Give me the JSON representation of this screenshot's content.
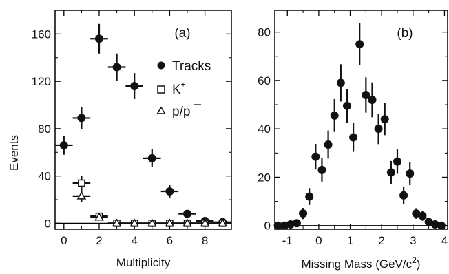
{
  "chart_data": [
    {
      "type": "scatter",
      "panel_label": "(a)",
      "xlabel": "Multiplicity",
      "ylabel": "Events",
      "xlim": [
        -0.5,
        9.5
      ],
      "ylim": [
        -5,
        180
      ],
      "xticks": [
        0,
        2,
        4,
        6,
        8
      ],
      "yticks": [
        0,
        40,
        80,
        120,
        160
      ],
      "baseline_y": 0,
      "series": [
        {
          "name": "Tracks",
          "marker": "filled-circle",
          "points": [
            {
              "x": 0,
              "y": 66,
              "yerr": 8
            },
            {
              "x": 1,
              "y": 89,
              "yerr": 9.5
            },
            {
              "x": 2,
              "y": 156,
              "yerr": 12.5
            },
            {
              "x": 3,
              "y": 132,
              "yerr": 11.5
            },
            {
              "x": 4,
              "y": 116,
              "yerr": 11
            },
            {
              "x": 5,
              "y": 55,
              "yerr": 7.5
            },
            {
              "x": 6,
              "y": 27,
              "yerr": 5.2
            },
            {
              "x": 7,
              "y": 8,
              "yerr": 2.8
            },
            {
              "x": 8,
              "y": 2,
              "yerr": 1.4
            },
            {
              "x": 9,
              "y": 1,
              "yerr": 1
            }
          ]
        },
        {
          "name": "K±",
          "marker": "open-square",
          "points": [
            {
              "x": 1,
              "y": 34,
              "yerr": 6
            },
            {
              "x": 2,
              "y": 6,
              "yerr": 2.5
            },
            {
              "x": 3,
              "y": 0,
              "yerr": 0.8
            },
            {
              "x": 4,
              "y": 0,
              "yerr": 0.8
            },
            {
              "x": 5,
              "y": 0,
              "yerr": 0.8
            },
            {
              "x": 6,
              "y": 0,
              "yerr": 0.8
            },
            {
              "x": 7,
              "y": 0,
              "yerr": 0.8
            },
            {
              "x": 8,
              "y": 0,
              "yerr": 0.8
            },
            {
              "x": 9,
              "y": 0,
              "yerr": 0.8
            }
          ]
        },
        {
          "name": "p/p̄",
          "marker": "open-triangle",
          "points": [
            {
              "x": 1,
              "y": 23,
              "yerr": 5
            },
            {
              "x": 2,
              "y": 5,
              "yerr": 2.2
            },
            {
              "x": 3,
              "y": 0,
              "yerr": 0.8
            },
            {
              "x": 4,
              "y": 0,
              "yerr": 0.8
            },
            {
              "x": 5,
              "y": 0,
              "yerr": 0.8
            },
            {
              "x": 6,
              "y": 0,
              "yerr": 0.8
            },
            {
              "x": 7,
              "y": 0,
              "yerr": 0.8
            },
            {
              "x": 8,
              "y": 0,
              "yerr": 0.8
            },
            {
              "x": 9,
              "y": 0,
              "yerr": 0.8
            }
          ]
        }
      ],
      "legend": [
        {
          "label": "Tracks",
          "sup": "",
          "marker": "filled-circle"
        },
        {
          "label": "K",
          "sup": "±",
          "marker": "open-square"
        },
        {
          "label": "p/p",
          "sup": "",
          "marker": "open-triangle"
        }
      ]
    },
    {
      "type": "scatter",
      "panel_label": "(b)",
      "xlabel": "Missing Mass  (GeV/c",
      "xlabel_sup": "2",
      "xlabel_end": ")",
      "ylabel": "",
      "xlim": [
        -1.4,
        4.1
      ],
      "ylim": [
        -1.5,
        89
      ],
      "xticks": [
        -1,
        0,
        1,
        2,
        3,
        4
      ],
      "yticks": [
        0,
        20,
        40,
        60,
        80
      ],
      "baseline_y": 0,
      "bin_width": 0.2,
      "series": [
        {
          "name": "",
          "marker": "filled-circle",
          "points": [
            {
              "x": -1.3,
              "y": 0,
              "yerr": 0.6
            },
            {
              "x": -1.1,
              "y": 0,
              "yerr": 0.6
            },
            {
              "x": -0.9,
              "y": 0.5,
              "yerr": 0.8
            },
            {
              "x": -0.7,
              "y": 1,
              "yerr": 1
            },
            {
              "x": -0.5,
              "y": 5,
              "yerr": 2.3
            },
            {
              "x": -0.3,
              "y": 12,
              "yerr": 3.5
            },
            {
              "x": -0.1,
              "y": 28.5,
              "yerr": 5.3
            },
            {
              "x": 0.1,
              "y": 23,
              "yerr": 4.8
            },
            {
              "x": 0.3,
              "y": 33.5,
              "yerr": 5.8
            },
            {
              "x": 0.5,
              "y": 45.5,
              "yerr": 6.8
            },
            {
              "x": 0.7,
              "y": 59,
              "yerr": 7.7
            },
            {
              "x": 0.9,
              "y": 49.5,
              "yerr": 7
            },
            {
              "x": 1.1,
              "y": 36.5,
              "yerr": 6
            },
            {
              "x": 1.3,
              "y": 75,
              "yerr": 8.7
            },
            {
              "x": 1.5,
              "y": 54,
              "yerr": 7.3
            },
            {
              "x": 1.7,
              "y": 52,
              "yerr": 7.2
            },
            {
              "x": 1.9,
              "y": 40,
              "yerr": 6.3
            },
            {
              "x": 2.1,
              "y": 44,
              "yerr": 6.6
            },
            {
              "x": 2.3,
              "y": 22,
              "yerr": 4.7
            },
            {
              "x": 2.5,
              "y": 26.5,
              "yerr": 5.1
            },
            {
              "x": 2.7,
              "y": 12.5,
              "yerr": 3.5
            },
            {
              "x": 2.9,
              "y": 21.5,
              "yerr": 4.6
            },
            {
              "x": 3.1,
              "y": 5,
              "yerr": 2.2
            },
            {
              "x": 3.3,
              "y": 4,
              "yerr": 2
            },
            {
              "x": 3.5,
              "y": 1.5,
              "yerr": 1.2
            },
            {
              "x": 3.7,
              "y": 0.5,
              "yerr": 0.8
            },
            {
              "x": 3.9,
              "y": 0,
              "yerr": 0.6
            }
          ]
        }
      ]
    }
  ]
}
